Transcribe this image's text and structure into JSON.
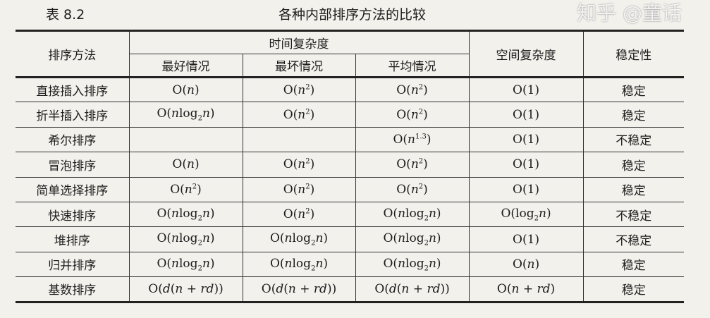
{
  "caption": {
    "number": "表 8.2",
    "title": "各种内部排序方法的比较"
  },
  "headers": {
    "method": "排序方法",
    "time": "时间复杂度",
    "best": "最好情况",
    "worst": "最坏情况",
    "average": "平均情况",
    "space": "空间复杂度",
    "stability": "稳定性"
  },
  "rows": [
    {
      "name": "直接插入排序",
      "best": [
        {
          "t": "O("
        },
        {
          "i": "n"
        },
        {
          "t": ")"
        }
      ],
      "worst": [
        {
          "t": "O("
        },
        {
          "i": "n"
        },
        {
          "sup": "2"
        },
        {
          "t": ")"
        }
      ],
      "avg": [
        {
          "t": "O("
        },
        {
          "i": "n"
        },
        {
          "sup": "2"
        },
        {
          "t": ")"
        }
      ],
      "space": [
        {
          "t": "O(1)"
        }
      ],
      "stability": "稳定"
    },
    {
      "name": "折半插入排序",
      "best": [
        {
          "t": "O("
        },
        {
          "i": "n"
        },
        {
          "t": "log"
        },
        {
          "sub": "2"
        },
        {
          "i": "n"
        },
        {
          "t": ")"
        }
      ],
      "worst": [
        {
          "t": "O("
        },
        {
          "i": "n"
        },
        {
          "sup": "2"
        },
        {
          "t": ")"
        }
      ],
      "avg": [
        {
          "t": "O("
        },
        {
          "i": "n"
        },
        {
          "sup": "2"
        },
        {
          "t": ")"
        }
      ],
      "space": [
        {
          "t": "O(1)"
        }
      ],
      "stability": "稳定"
    },
    {
      "name": "希尔排序",
      "best": [],
      "worst": [],
      "avg": [
        {
          "t": "O("
        },
        {
          "i": "n"
        },
        {
          "sup": "1.3"
        },
        {
          "t": ")"
        }
      ],
      "space": [
        {
          "t": "O(1)"
        }
      ],
      "stability": "不稳定"
    },
    {
      "name": "冒泡排序",
      "best": [
        {
          "t": "O("
        },
        {
          "i": "n"
        },
        {
          "t": ")"
        }
      ],
      "worst": [
        {
          "t": "O("
        },
        {
          "i": "n"
        },
        {
          "sup": "2"
        },
        {
          "t": ")"
        }
      ],
      "avg": [
        {
          "t": "O("
        },
        {
          "i": "n"
        },
        {
          "sup": "2"
        },
        {
          "t": ")"
        }
      ],
      "space": [
        {
          "t": "O(1)"
        }
      ],
      "stability": "稳定"
    },
    {
      "name": "简单选择排序",
      "best": [
        {
          "t": "O("
        },
        {
          "i": "n"
        },
        {
          "sup": "2"
        },
        {
          "t": ")"
        }
      ],
      "worst": [
        {
          "t": "O("
        },
        {
          "i": "n"
        },
        {
          "sup": "2"
        },
        {
          "t": ")"
        }
      ],
      "avg": [
        {
          "t": "O("
        },
        {
          "i": "n"
        },
        {
          "sup": "2"
        },
        {
          "t": ")"
        }
      ],
      "space": [
        {
          "t": "O(1)"
        }
      ],
      "stability": "稳定"
    },
    {
      "name": "快速排序",
      "best": [
        {
          "t": "O("
        },
        {
          "i": "n"
        },
        {
          "t": "log"
        },
        {
          "sub": "2"
        },
        {
          "i": "n"
        },
        {
          "t": ")"
        }
      ],
      "worst": [
        {
          "t": "O("
        },
        {
          "i": "n"
        },
        {
          "sup": "2"
        },
        {
          "t": ")"
        }
      ],
      "avg": [
        {
          "t": "O("
        },
        {
          "i": "n"
        },
        {
          "t": "log"
        },
        {
          "sub": "2"
        },
        {
          "i": "n"
        },
        {
          "t": ")"
        }
      ],
      "space": [
        {
          "t": "O(log"
        },
        {
          "sub": "2"
        },
        {
          "i": "n"
        },
        {
          "t": ")"
        }
      ],
      "stability": "不稳定"
    },
    {
      "name": "堆排序",
      "best": [
        {
          "t": "O("
        },
        {
          "i": "n"
        },
        {
          "t": "log"
        },
        {
          "sub": "2"
        },
        {
          "i": "n"
        },
        {
          "t": ")"
        }
      ],
      "worst": [
        {
          "t": "O("
        },
        {
          "i": "n"
        },
        {
          "t": "log"
        },
        {
          "sub": "2"
        },
        {
          "i": "n"
        },
        {
          "t": ")"
        }
      ],
      "avg": [
        {
          "t": "O("
        },
        {
          "i": "n"
        },
        {
          "t": "log"
        },
        {
          "sub": "2"
        },
        {
          "i": "n"
        },
        {
          "t": ")"
        }
      ],
      "space": [
        {
          "t": "O(1)"
        }
      ],
      "stability": "不稳定"
    },
    {
      "name": "归并排序",
      "best": [
        {
          "t": "O("
        },
        {
          "i": "n"
        },
        {
          "t": "log"
        },
        {
          "sub": "2"
        },
        {
          "i": "n"
        },
        {
          "t": ")"
        }
      ],
      "worst": [
        {
          "t": "O("
        },
        {
          "i": "n"
        },
        {
          "t": "log"
        },
        {
          "sub": "2"
        },
        {
          "i": "n"
        },
        {
          "t": ")"
        }
      ],
      "avg": [
        {
          "t": "O("
        },
        {
          "i": "n"
        },
        {
          "t": "log"
        },
        {
          "sub": "2"
        },
        {
          "i": "n"
        },
        {
          "t": ")"
        }
      ],
      "space": [
        {
          "t": "O("
        },
        {
          "i": "n"
        },
        {
          "t": ")"
        }
      ],
      "stability": "稳定"
    },
    {
      "name": "基数排序",
      "best": [
        {
          "t": "O("
        },
        {
          "i": "d"
        },
        {
          "t": "("
        },
        {
          "i": "n"
        },
        {
          "t": " + "
        },
        {
          "i": "rd"
        },
        {
          "t": "))"
        }
      ],
      "worst": [
        {
          "t": "O("
        },
        {
          "i": "d"
        },
        {
          "t": "("
        },
        {
          "i": "n"
        },
        {
          "t": " + "
        },
        {
          "i": "rd"
        },
        {
          "t": "))"
        }
      ],
      "avg": [
        {
          "t": "O("
        },
        {
          "i": "d"
        },
        {
          "t": "("
        },
        {
          "i": "n"
        },
        {
          "t": " + "
        },
        {
          "i": "rd"
        },
        {
          "t": "))"
        }
      ],
      "space": [
        {
          "t": "O("
        },
        {
          "i": "n"
        },
        {
          "t": " + "
        },
        {
          "i": "rd"
        },
        {
          "t": ")"
        }
      ],
      "stability": "稳定"
    }
  ],
  "watermark": "知乎 @童话"
}
